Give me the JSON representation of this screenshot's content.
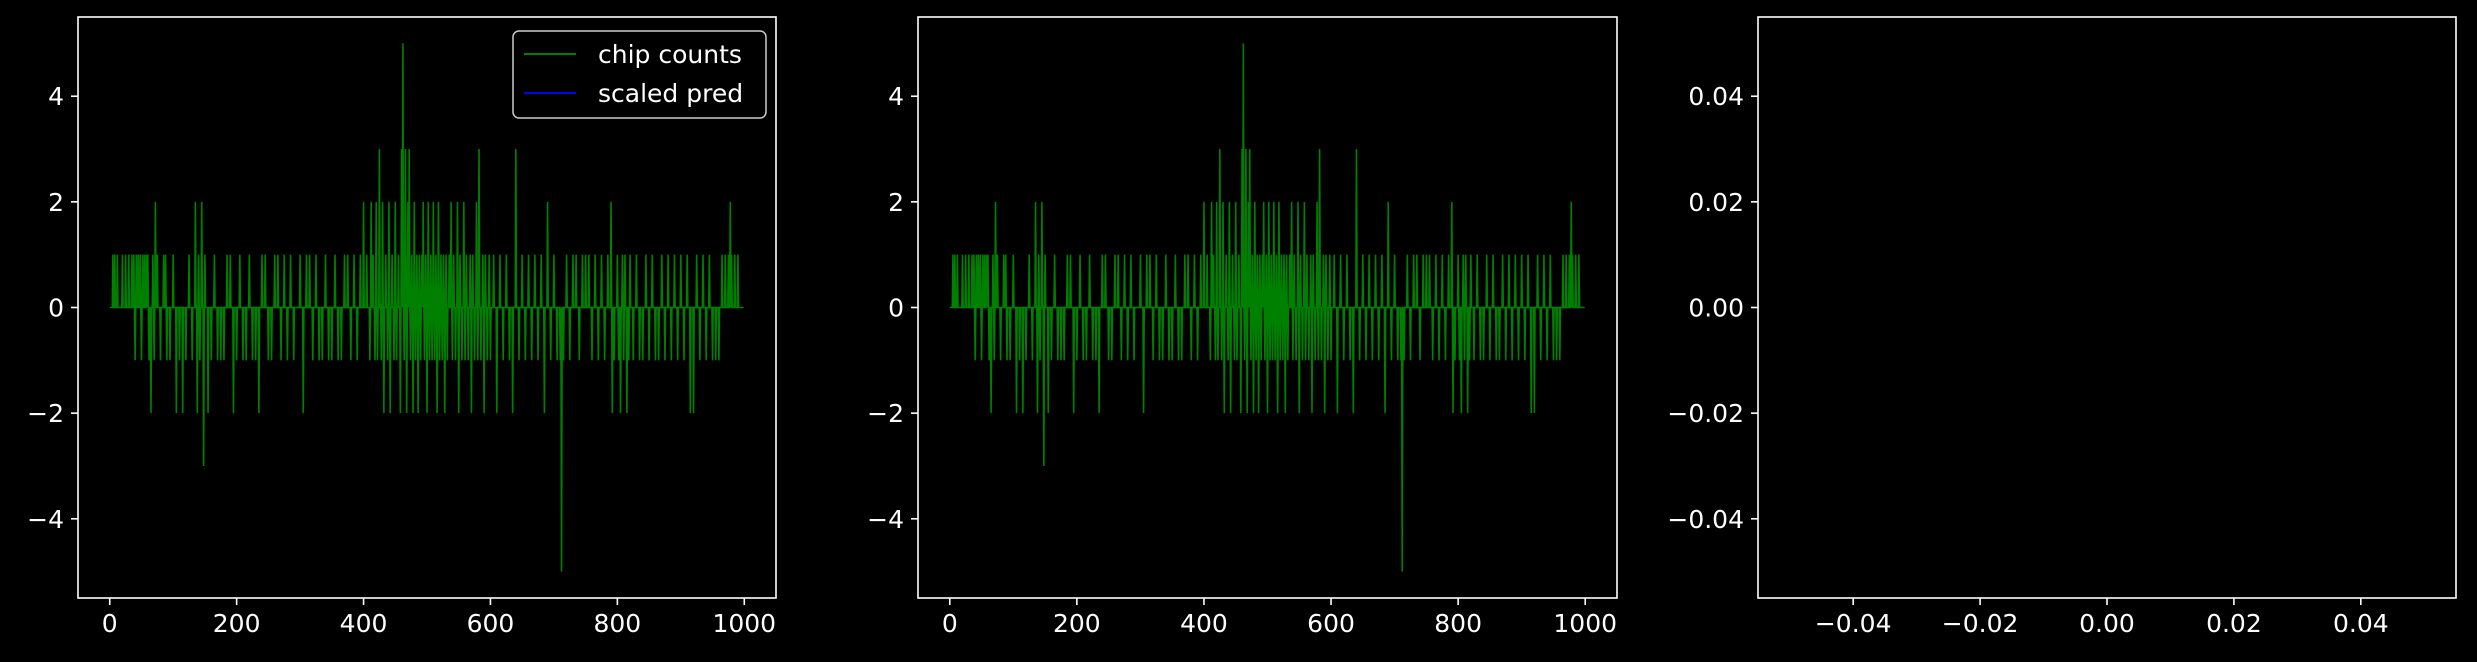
{
  "colors": {
    "background": "#000000",
    "axes": "#ffffff",
    "counts": "#008000",
    "pred": "#0000ff"
  },
  "chart_data": [
    {
      "type": "line",
      "legend": {
        "placement": "top-right",
        "entries": [
          {
            "label": "chip counts",
            "color": "#008000"
          },
          {
            "label": "scaled pred",
            "color": "#0000ff"
          }
        ]
      },
      "xlim": [
        -50,
        1050
      ],
      "ylim": [
        -5.5,
        5.5
      ],
      "xticks": [
        0,
        200,
        400,
        600,
        800,
        1000
      ],
      "xtick_labels": [
        "0",
        "200",
        "400",
        "600",
        "800",
        "1000"
      ],
      "yticks": [
        4,
        2,
        0,
        -2,
        -4
      ],
      "ytick_labels": [
        "4",
        "2",
        "0",
        "−2",
        "−4"
      ],
      "series": [
        {
          "name": "chip counts",
          "color": "#008000",
          "x_start": 0,
          "x_end": 999,
          "spikes": [
            [
              5,
              1
            ],
            [
              8,
              1
            ],
            [
              12,
              1
            ],
            [
              20,
              1
            ],
            [
              25,
              1
            ],
            [
              30,
              1
            ],
            [
              35,
              1
            ],
            [
              38,
              1
            ],
            [
              40,
              -1
            ],
            [
              42,
              1
            ],
            [
              45,
              1
            ],
            [
              48,
              1
            ],
            [
              50,
              -1
            ],
            [
              52,
              1
            ],
            [
              55,
              1
            ],
            [
              58,
              1
            ],
            [
              60,
              1
            ],
            [
              62,
              -1
            ],
            [
              65,
              -2
            ],
            [
              68,
              1
            ],
            [
              70,
              -1
            ],
            [
              72,
              2
            ],
            [
              75,
              1
            ],
            [
              80,
              -1
            ],
            [
              85,
              1
            ],
            [
              88,
              1
            ],
            [
              90,
              -1
            ],
            [
              95,
              -1
            ],
            [
              100,
              1
            ],
            [
              105,
              -2
            ],
            [
              110,
              -1
            ],
            [
              115,
              -2
            ],
            [
              120,
              -1
            ],
            [
              125,
              1
            ],
            [
              130,
              -1
            ],
            [
              135,
              2
            ],
            [
              138,
              -2
            ],
            [
              140,
              1
            ],
            [
              142,
              -1
            ],
            [
              145,
              2
            ],
            [
              148,
              -3
            ],
            [
              150,
              1
            ],
            [
              155,
              -2
            ],
            [
              160,
              -1
            ],
            [
              165,
              1
            ],
            [
              170,
              -1
            ],
            [
              175,
              -1
            ],
            [
              180,
              -1
            ],
            [
              185,
              1
            ],
            [
              190,
              1
            ],
            [
              195,
              -2
            ],
            [
              200,
              -1
            ],
            [
              205,
              1
            ],
            [
              210,
              -1
            ],
            [
              215,
              -1
            ],
            [
              220,
              1
            ],
            [
              225,
              -1
            ],
            [
              230,
              -1
            ],
            [
              235,
              -2
            ],
            [
              240,
              1
            ],
            [
              245,
              1
            ],
            [
              250,
              -1
            ],
            [
              255,
              -1
            ],
            [
              260,
              1
            ],
            [
              265,
              1
            ],
            [
              270,
              -1
            ],
            [
              275,
              1
            ],
            [
              280,
              -1
            ],
            [
              285,
              1
            ],
            [
              290,
              -1
            ],
            [
              300,
              1
            ],
            [
              305,
              -2
            ],
            [
              310,
              1
            ],
            [
              315,
              1
            ],
            [
              320,
              -1
            ],
            [
              325,
              1
            ],
            [
              330,
              -1
            ],
            [
              335,
              -1
            ],
            [
              340,
              1
            ],
            [
              345,
              -1
            ],
            [
              350,
              -1
            ],
            [
              355,
              1
            ],
            [
              360,
              -1
            ],
            [
              365,
              -1
            ],
            [
              370,
              1
            ],
            [
              375,
              1
            ],
            [
              380,
              -1
            ],
            [
              385,
              1
            ],
            [
              390,
              -1
            ],
            [
              395,
              1
            ],
            [
              400,
              2
            ],
            [
              405,
              1
            ],
            [
              410,
              -1
            ],
            [
              412,
              2
            ],
            [
              415,
              1
            ],
            [
              418,
              -1
            ],
            [
              420,
              2
            ],
            [
              422,
              -1
            ],
            [
              425,
              3
            ],
            [
              428,
              -1
            ],
            [
              430,
              2
            ],
            [
              432,
              -2
            ],
            [
              435,
              1
            ],
            [
              438,
              -1
            ],
            [
              440,
              2
            ],
            [
              442,
              -2
            ],
            [
              445,
              1
            ],
            [
              448,
              -1
            ],
            [
              450,
              2
            ],
            [
              452,
              -1
            ],
            [
              455,
              1
            ],
            [
              458,
              -2
            ],
            [
              460,
              3
            ],
            [
              462,
              5
            ],
            [
              464,
              -1
            ],
            [
              466,
              3
            ],
            [
              468,
              -2
            ],
            [
              470,
              2
            ],
            [
              472,
              3
            ],
            [
              474,
              -1
            ],
            [
              476,
              1
            ],
            [
              478,
              -2
            ],
            [
              480,
              2
            ],
            [
              482,
              -1
            ],
            [
              484,
              1
            ],
            [
              486,
              -2
            ],
            [
              488,
              1
            ],
            [
              490,
              -1
            ],
            [
              492,
              1
            ],
            [
              494,
              2
            ],
            [
              496,
              -1
            ],
            [
              498,
              1
            ],
            [
              500,
              -2
            ],
            [
              502,
              2
            ],
            [
              504,
              -1
            ],
            [
              506,
              1
            ],
            [
              508,
              -1
            ],
            [
              510,
              2
            ],
            [
              512,
              -1
            ],
            [
              514,
              1
            ],
            [
              516,
              -2
            ],
            [
              518,
              2
            ],
            [
              520,
              -1
            ],
            [
              522,
              1
            ],
            [
              524,
              -1
            ],
            [
              526,
              1
            ],
            [
              528,
              -2
            ],
            [
              530,
              1
            ],
            [
              532,
              -1
            ],
            [
              535,
              1
            ],
            [
              538,
              2
            ],
            [
              540,
              -1
            ],
            [
              542,
              1
            ],
            [
              545,
              -1
            ],
            [
              548,
              2
            ],
            [
              550,
              -2
            ],
            [
              552,
              1
            ],
            [
              555,
              -1
            ],
            [
              558,
              2
            ],
            [
              560,
              -1
            ],
            [
              562,
              1
            ],
            [
              565,
              -1
            ],
            [
              568,
              1
            ],
            [
              570,
              -2
            ],
            [
              572,
              1
            ],
            [
              575,
              -1
            ],
            [
              578,
              2
            ],
            [
              580,
              -1
            ],
            [
              582,
              3
            ],
            [
              585,
              -1
            ],
            [
              588,
              1
            ],
            [
              590,
              -2
            ],
            [
              592,
              1
            ],
            [
              595,
              -1
            ],
            [
              598,
              1
            ],
            [
              600,
              -1
            ],
            [
              605,
              1
            ],
            [
              610,
              -2
            ],
            [
              615,
              1
            ],
            [
              620,
              -1
            ],
            [
              625,
              1
            ],
            [
              630,
              -1
            ],
            [
              635,
              -2
            ],
            [
              640,
              3
            ],
            [
              645,
              -1
            ],
            [
              650,
              1
            ],
            [
              655,
              -1
            ],
            [
              660,
              1
            ],
            [
              665,
              -1
            ],
            [
              670,
              1
            ],
            [
              675,
              -1
            ],
            [
              680,
              1
            ],
            [
              685,
              -2
            ],
            [
              690,
              2
            ],
            [
              695,
              -1
            ],
            [
              700,
              1
            ],
            [
              705,
              -1
            ],
            [
              710,
              -1
            ],
            [
              712,
              -5
            ],
            [
              715,
              -1
            ],
            [
              720,
              1
            ],
            [
              725,
              -1
            ],
            [
              730,
              1
            ],
            [
              735,
              1
            ],
            [
              740,
              -1
            ],
            [
              745,
              1
            ],
            [
              750,
              1
            ],
            [
              755,
              1
            ],
            [
              760,
              -1
            ],
            [
              765,
              1
            ],
            [
              770,
              -1
            ],
            [
              775,
              1
            ],
            [
              780,
              -1
            ],
            [
              785,
              1
            ],
            [
              790,
              2
            ],
            [
              792,
              -2
            ],
            [
              795,
              -1
            ],
            [
              800,
              1
            ],
            [
              802,
              -1
            ],
            [
              805,
              -2
            ],
            [
              808,
              1
            ],
            [
              810,
              -1
            ],
            [
              812,
              1
            ],
            [
              815,
              -2
            ],
            [
              818,
              -1
            ],
            [
              820,
              1
            ],
            [
              825,
              -1
            ],
            [
              830,
              1
            ],
            [
              835,
              -1
            ],
            [
              840,
              -1
            ],
            [
              845,
              1
            ],
            [
              850,
              -1
            ],
            [
              855,
              1
            ],
            [
              860,
              -1
            ],
            [
              865,
              -1
            ],
            [
              870,
              1
            ],
            [
              875,
              -1
            ],
            [
              880,
              1
            ],
            [
              885,
              -1
            ],
            [
              890,
              1
            ],
            [
              895,
              -1
            ],
            [
              900,
              1
            ],
            [
              905,
              -1
            ],
            [
              910,
              1
            ],
            [
              915,
              -2
            ],
            [
              920,
              -2
            ],
            [
              925,
              1
            ],
            [
              930,
              -1
            ],
            [
              935,
              1
            ],
            [
              940,
              -1
            ],
            [
              945,
              1
            ],
            [
              950,
              -1
            ],
            [
              955,
              -1
            ],
            [
              960,
              -1
            ],
            [
              965,
              1
            ],
            [
              970,
              1
            ],
            [
              975,
              1
            ],
            [
              978,
              2
            ],
            [
              980,
              1
            ],
            [
              985,
              1
            ],
            [
              990,
              1
            ]
          ]
        },
        {
          "name": "scaled pred",
          "color": "#0000ff",
          "values": []
        }
      ]
    },
    {
      "type": "line",
      "xlim": [
        -50,
        1050
      ],
      "ylim": [
        -5.5,
        5.5
      ],
      "xticks": [
        0,
        200,
        400,
        600,
        800,
        1000
      ],
      "xtick_labels": [
        "0",
        "200",
        "400",
        "600",
        "800",
        "1000"
      ],
      "yticks": [
        4,
        2,
        0,
        -2,
        -4
      ],
      "ytick_labels": [
        "4",
        "2",
        "0",
        "−2",
        "−4"
      ],
      "series": [
        {
          "color": "#008000",
          "x_start": 0,
          "x_end": 999,
          "same_as_panel": 0
        }
      ]
    },
    {
      "type": "line",
      "xlim": [
        -0.055,
        0.055
      ],
      "ylim": [
        -0.055,
        0.055
      ],
      "xticks": [
        -0.04,
        -0.02,
        0.0,
        0.02,
        0.04
      ],
      "xtick_labels": [
        "−0.04",
        "−0.02",
        "0.00",
        "0.02",
        "0.04"
      ],
      "yticks": [
        0.04,
        0.02,
        0.0,
        -0.02,
        -0.04
      ],
      "ytick_labels": [
        "0.04",
        "0.02",
        "0.00",
        "−0.02",
        "−0.04"
      ],
      "series": []
    }
  ]
}
